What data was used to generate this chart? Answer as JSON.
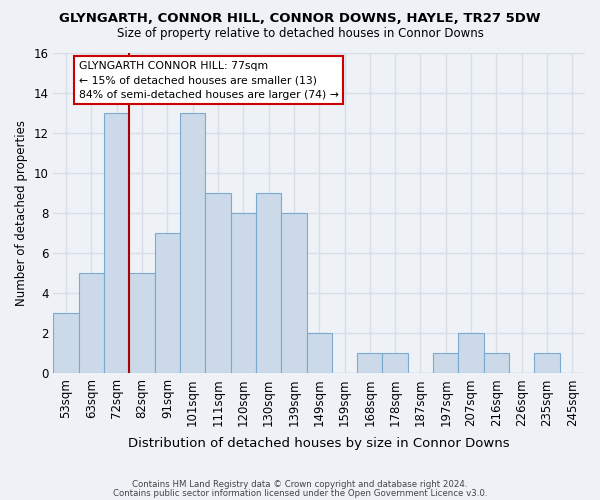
{
  "title": "GLYNGARTH, CONNOR HILL, CONNOR DOWNS, HAYLE, TR27 5DW",
  "subtitle": "Size of property relative to detached houses in Connor Downs",
  "xlabel": "Distribution of detached houses by size in Connor Downs",
  "ylabel": "Number of detached properties",
  "bar_color": "#ccd9e8",
  "bar_edge_color": "#7aaad0",
  "categories": [
    "53sqm",
    "63sqm",
    "72sqm",
    "82sqm",
    "91sqm",
    "101sqm",
    "111sqm",
    "120sqm",
    "130sqm",
    "139sqm",
    "149sqm",
    "159sqm",
    "168sqm",
    "178sqm",
    "187sqm",
    "197sqm",
    "207sqm",
    "216sqm",
    "226sqm",
    "235sqm",
    "245sqm"
  ],
  "values": [
    3,
    5,
    13,
    5,
    7,
    13,
    9,
    8,
    9,
    8,
    2,
    0,
    1,
    1,
    0,
    1,
    2,
    1,
    0,
    1,
    0
  ],
  "ylim": [
    0,
    16
  ],
  "yticks": [
    0,
    2,
    4,
    6,
    8,
    10,
    12,
    14,
    16
  ],
  "vline_color": "#aa0000",
  "annotation_text": "GLYNGARTH CONNOR HILL: 77sqm\n← 15% of detached houses are smaller (13)\n84% of semi-detached houses are larger (74) →",
  "annotation_box_color": "white",
  "annotation_box_edge": "#cc0000",
  "footer_line1": "Contains HM Land Registry data © Crown copyright and database right 2024.",
  "footer_line2": "Contains public sector information licensed under the Open Government Licence v3.0.",
  "background_color": "#eef2f7",
  "grid_color": "#d8dde8"
}
